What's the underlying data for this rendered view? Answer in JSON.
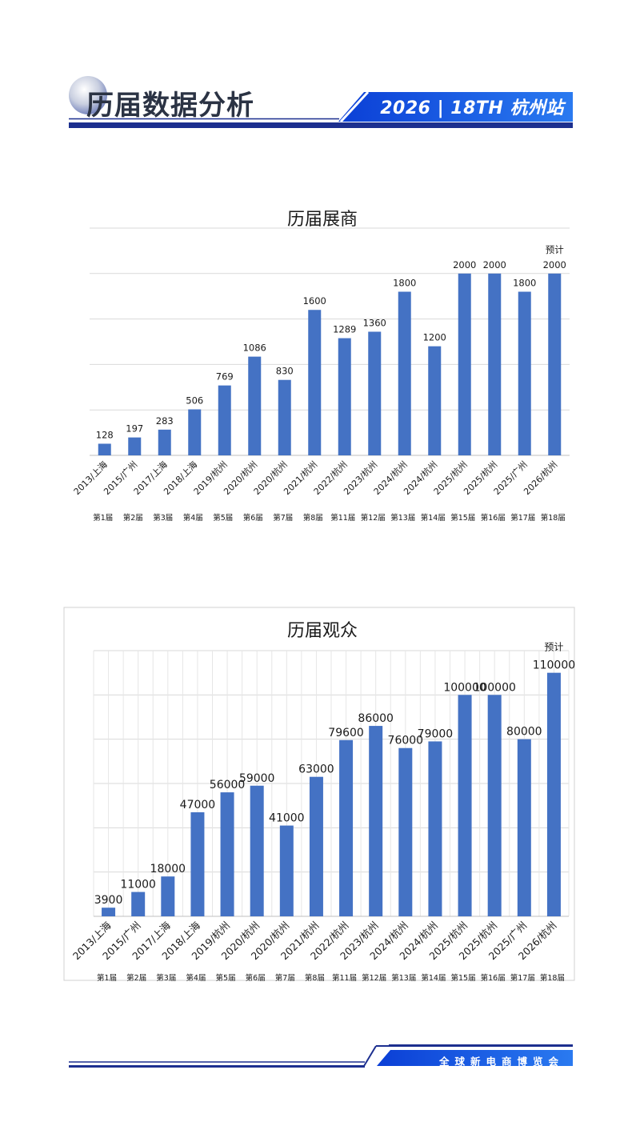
{
  "header": {
    "title": "历届数据分析",
    "badge": "2026 | 18TH 杭州站"
  },
  "footer": {
    "text": "全球新电商博览会"
  },
  "colors": {
    "accent": "#1a56d6",
    "navy": "#1c2f8f",
    "bar": "#4472c4",
    "grid": "#d9d9d9"
  },
  "chart_data": [
    {
      "type": "bar",
      "title": "历届展商",
      "annotation": "预计",
      "categories": [
        "2013/上海",
        "2015/广州",
        "2017/上海",
        "2018/上海",
        "2019/杭州",
        "2020/杭州",
        "2020/杭州",
        "2021/杭州",
        "2022/杭州",
        "2023/杭州",
        "2024/杭州",
        "2024/杭州",
        "2025/杭州",
        "2025/杭州",
        "2025/广州",
        "2026/杭州"
      ],
      "sessions": [
        "第1届",
        "第2届",
        "第3届",
        "第4届",
        "第5届",
        "第6届",
        "第7届",
        "第8届",
        "第11届",
        "第12届",
        "第13届",
        "第14届",
        "第15届",
        "第16届",
        "第17届",
        "第18届"
      ],
      "values": [
        128,
        197,
        283,
        506,
        769,
        1086,
        830,
        1600,
        1289,
        1360,
        1800,
        1200,
        2000,
        2000,
        1800,
        2000
      ],
      "ylim": [
        0,
        2500
      ],
      "grid": true
    },
    {
      "type": "bar",
      "title": "历届观众",
      "annotation": "预计",
      "categories": [
        "2013/上海",
        "2015/广州",
        "2017/上海",
        "2018/上海",
        "2019/杭州",
        "2020/杭州",
        "2020/杭州",
        "2021/杭州",
        "2022/杭州",
        "2023/杭州",
        "2024/杭州",
        "2024/杭州",
        "2025/杭州",
        "2025/杭州",
        "2025/广州",
        "2026/杭州"
      ],
      "sessions": [
        "第1届",
        "第2届",
        "第3届",
        "第4届",
        "第5届",
        "第6届",
        "第7届",
        "第8届",
        "第11届",
        "第12届",
        "第13届",
        "第14届",
        "第15届",
        "第16届",
        "第17届",
        "第18届"
      ],
      "values": [
        3900,
        11000,
        18000,
        47000,
        56000,
        59000,
        41000,
        63000,
        79600,
        86000,
        76000,
        79000,
        100000,
        100000,
        80000,
        110000
      ],
      "ylim": [
        0,
        120000
      ],
      "grid": true
    }
  ]
}
